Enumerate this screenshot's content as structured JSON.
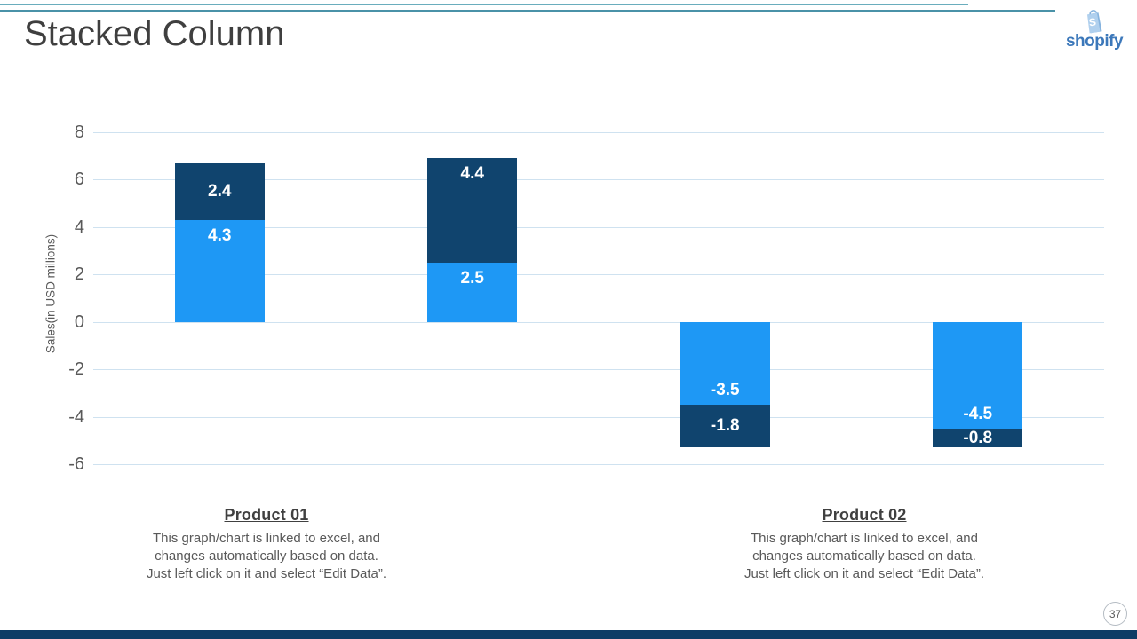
{
  "header": {
    "title": "Stacked Column",
    "logo": {
      "wordmark": "shopify",
      "bag_letter": "S"
    }
  },
  "chart_data": {
    "type": "bar",
    "stacked": true,
    "title": "",
    "xlabel": "",
    "ylabel": "Sales(in USD millions)",
    "ylim": [
      -6,
      8
    ],
    "yticks": [
      8,
      6,
      4,
      2,
      0,
      -2,
      -4,
      -6
    ],
    "grid": true,
    "legend": false,
    "categories": [
      "",
      "",
      "",
      ""
    ],
    "series": [
      {
        "name": "light-blue-segment",
        "color": "#1E98F5",
        "values": [
          4.3,
          2.5,
          -3.5,
          -4.5
        ]
      },
      {
        "name": "dark-navy-segment",
        "color": "#10446E",
        "values": [
          2.4,
          4.4,
          -1.8,
          -0.8
        ]
      }
    ],
    "value_label_color": "#ffffff",
    "gridline_color": "#cfe2f0",
    "tick_label_color": "#595959"
  },
  "notes": [
    {
      "label": "Product 01",
      "lines": [
        "This graph/chart is linked to excel, and",
        "changes automatically based on data.",
        "Just left click on it and select “Edit Data”."
      ]
    },
    {
      "label": "Product 02",
      "lines": [
        "This graph/chart is linked to excel, and",
        "changes automatically based on data.",
        "Just left click on it and select “Edit Data”."
      ]
    }
  ],
  "footer": {
    "page_number": "37"
  },
  "colors": {
    "accent_line_top": "#6aadbd",
    "accent_line_bottom": "#4a92a8",
    "footer_bar": "#0d3c66",
    "title_text": "#3f3f3f",
    "muted_text": "#595959",
    "wordmark": "#3c78ba",
    "bag_fill": "#b0d0ee",
    "bag_shade": "#86b3de"
  }
}
